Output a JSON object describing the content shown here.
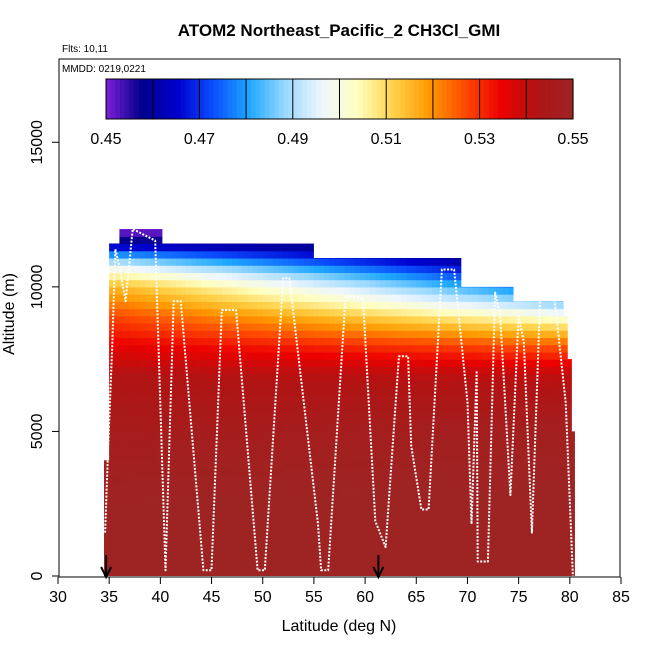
{
  "chart_data": {
    "type": "heatmap",
    "title": "ATOM2 Northeast_Pacific_2 CH3Cl_GMI",
    "flights_label": "Flts: 10,11",
    "dates_label": "MMDD: 0219,0221",
    "xlabel": "Latitude (deg N)",
    "ylabel": "Altitude (m)",
    "xlim": [
      30,
      85
    ],
    "ylim": [
      0,
      17500
    ],
    "x_ticks": [
      30,
      35,
      40,
      45,
      50,
      55,
      60,
      65,
      70,
      75,
      80,
      85
    ],
    "y_ticks": [
      0,
      5000,
      10000,
      15000
    ],
    "colorbar": {
      "range": [
        0.45,
        0.55
      ],
      "tick_values": [
        0.45,
        0.47,
        0.49,
        0.51,
        0.53,
        0.55
      ],
      "tick_labels": [
        "0.45",
        "0.47",
        "0.49",
        "0.51",
        "0.53",
        "0.55"
      ],
      "colors": [
        "#7e1fd8",
        "#00008b",
        "#0000cd",
        "#0b4fff",
        "#1fa8ff",
        "#9bd9ff",
        "#eef6ff",
        "#ffffc0",
        "#ffd24a",
        "#ff9a00",
        "#ff4a00",
        "#ec0000",
        "#b01414",
        "#9e2424"
      ]
    },
    "curtain_top_by_latitude": [
      {
        "lat": 34.5,
        "top_m": 4000
      },
      {
        "lat": 35.0,
        "top_m": 11500
      },
      {
        "lat": 36.0,
        "top_m": 12000
      },
      {
        "lat": 40.0,
        "top_m": 12000
      },
      {
        "lat": 40.2,
        "top_m": 11500
      },
      {
        "lat": 54.8,
        "top_m": 11500
      },
      {
        "lat": 55.0,
        "top_m": 11000
      },
      {
        "lat": 69.2,
        "top_m": 11000
      },
      {
        "lat": 69.4,
        "top_m": 10000
      },
      {
        "lat": 74.3,
        "top_m": 10000
      },
      {
        "lat": 74.5,
        "top_m": 9500
      },
      {
        "lat": 79.2,
        "top_m": 9500
      },
      {
        "lat": 79.4,
        "top_m": 9000
      },
      {
        "lat": 79.8,
        "top_m": 7500
      },
      {
        "lat": 80.2,
        "top_m": 5000
      }
    ],
    "curtain_profile_low_lat": [
      {
        "altitude_m": 0,
        "value": 0.553
      },
      {
        "altitude_m": 4000,
        "value": 0.548
      },
      {
        "altitude_m": 7000,
        "value": 0.542
      },
      {
        "altitude_m": 8000,
        "value": 0.535
      },
      {
        "altitude_m": 9000,
        "value": 0.527
      },
      {
        "altitude_m": 10000,
        "value": 0.515
      },
      {
        "altitude_m": 10500,
        "value": 0.503
      },
      {
        "altitude_m": 11000,
        "value": 0.485
      },
      {
        "altitude_m": 11500,
        "value": 0.46
      },
      {
        "altitude_m": 12000,
        "value": 0.45
      }
    ],
    "curtain_profile_high_lat": [
      {
        "altitude_m": 0,
        "value": 0.553
      },
      {
        "altitude_m": 5000,
        "value": 0.548
      },
      {
        "altitude_m": 7000,
        "value": 0.54
      },
      {
        "altitude_m": 8000,
        "value": 0.525
      },
      {
        "altitude_m": 8800,
        "value": 0.505
      },
      {
        "altitude_m": 9500,
        "value": 0.485
      },
      {
        "altitude_m": 10300,
        "value": 0.465
      },
      {
        "altitude_m": 11000,
        "value": 0.45
      }
    ],
    "flight_track": [
      {
        "lat": 34.6,
        "alt": 1500
      },
      {
        "lat": 34.9,
        "alt": 4500
      },
      {
        "lat": 35.3,
        "alt": 8000
      },
      {
        "lat": 35.6,
        "alt": 11300
      },
      {
        "lat": 36.0,
        "alt": 10700
      },
      {
        "lat": 36.6,
        "alt": 9500
      },
      {
        "lat": 37.3,
        "alt": 12000
      },
      {
        "lat": 39.5,
        "alt": 11600
      },
      {
        "lat": 40.5,
        "alt": 200
      },
      {
        "lat": 41.3,
        "alt": 9500
      },
      {
        "lat": 42.0,
        "alt": 9500
      },
      {
        "lat": 44.2,
        "alt": 200
      },
      {
        "lat": 45.0,
        "alt": 200
      },
      {
        "lat": 46.0,
        "alt": 9200
      },
      {
        "lat": 47.4,
        "alt": 9200
      },
      {
        "lat": 49.5,
        "alt": 200
      },
      {
        "lat": 50.2,
        "alt": 200
      },
      {
        "lat": 52.0,
        "alt": 10300
      },
      {
        "lat": 52.6,
        "alt": 10300
      },
      {
        "lat": 55.4,
        "alt": 1800
      },
      {
        "lat": 55.7,
        "alt": 200
      },
      {
        "lat": 56.4,
        "alt": 200
      },
      {
        "lat": 58.1,
        "alt": 9700
      },
      {
        "lat": 59.8,
        "alt": 9600
      },
      {
        "lat": 61.0,
        "alt": 1900
      },
      {
        "lat": 62.0,
        "alt": 1000
      },
      {
        "lat": 63.3,
        "alt": 7600
      },
      {
        "lat": 64.2,
        "alt": 7600
      },
      {
        "lat": 64.5,
        "alt": 4500
      },
      {
        "lat": 65.5,
        "alt": 2300
      },
      {
        "lat": 66.2,
        "alt": 2300
      },
      {
        "lat": 67.5,
        "alt": 10600
      },
      {
        "lat": 68.7,
        "alt": 10600
      },
      {
        "lat": 70.0,
        "alt": 6000
      },
      {
        "lat": 70.4,
        "alt": 1800
      },
      {
        "lat": 70.9,
        "alt": 7100
      },
      {
        "lat": 71.0,
        "alt": 500
      },
      {
        "lat": 72.0,
        "alt": 500
      },
      {
        "lat": 72.7,
        "alt": 9800
      },
      {
        "lat": 73.2,
        "alt": 9000
      },
      {
        "lat": 74.2,
        "alt": 2800
      },
      {
        "lat": 75.0,
        "alt": 9000
      },
      {
        "lat": 75.5,
        "alt": 8100
      },
      {
        "lat": 76.3,
        "alt": 1500
      },
      {
        "lat": 77.1,
        "alt": 9600
      },
      {
        "lat": 78.5,
        "alt": 9600
      },
      {
        "lat": 79.6,
        "alt": 6000
      },
      {
        "lat": 80.3,
        "alt": 0
      }
    ],
    "arrows_at_lat": [
      34.7,
      61.3
    ]
  }
}
